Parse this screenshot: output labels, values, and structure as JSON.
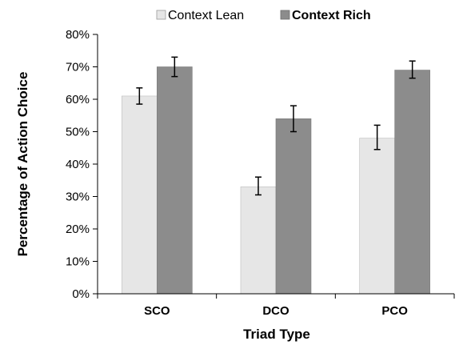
{
  "chart_data": {
    "type": "bar",
    "categories": [
      "SCO",
      "DCO",
      "PCO"
    ],
    "series": [
      {
        "name": "Context Lean",
        "values": [
          61,
          33,
          48
        ],
        "error_low": [
          58.5,
          30.5,
          44.5
        ],
        "error_high": [
          63.5,
          36,
          52
        ],
        "color": "#e6e6e6"
      },
      {
        "name": "Context Rich",
        "values": [
          70,
          54,
          69
        ],
        "error_low": [
          67,
          50,
          66.5
        ],
        "error_high": [
          73,
          58,
          71.8
        ],
        "color": "#8c8c8c"
      }
    ],
    "ylim": [
      0,
      80
    ],
    "yticks": [
      0,
      10,
      20,
      30,
      40,
      50,
      60,
      70,
      80
    ],
    "ytick_labels": [
      "0%",
      "10%",
      "20%",
      "30%",
      "40%",
      "50%",
      "60%",
      "70%",
      "80%"
    ],
    "xlabel": "Triad Type",
    "ylabel": "Percentage of Action Choice",
    "legend_position": "top",
    "grid": false
  }
}
